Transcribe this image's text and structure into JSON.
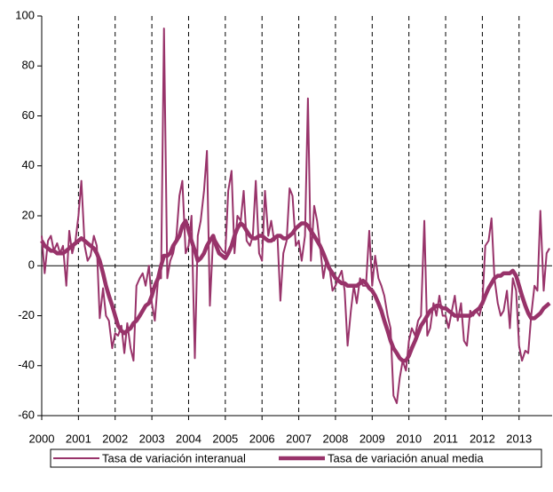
{
  "chart_data": {
    "type": "line",
    "x": [
      2000,
      2000.08,
      2000.17,
      2000.25,
      2000.33,
      2000.42,
      2000.5,
      2000.58,
      2000.67,
      2000.75,
      2000.83,
      2000.92,
      2001,
      2001.08,
      2001.17,
      2001.25,
      2001.33,
      2001.42,
      2001.5,
      2001.58,
      2001.67,
      2001.75,
      2001.83,
      2001.92,
      2002,
      2002.08,
      2002.17,
      2002.25,
      2002.33,
      2002.42,
      2002.5,
      2002.58,
      2002.67,
      2002.75,
      2002.83,
      2002.92,
      2003,
      2003.08,
      2003.17,
      2003.25,
      2003.33,
      2003.42,
      2003.5,
      2003.58,
      2003.67,
      2003.75,
      2003.83,
      2003.92,
      2004,
      2004.08,
      2004.17,
      2004.25,
      2004.33,
      2004.42,
      2004.5,
      2004.58,
      2004.67,
      2004.75,
      2004.83,
      2004.92,
      2005,
      2005.08,
      2005.17,
      2005.25,
      2005.33,
      2005.42,
      2005.5,
      2005.58,
      2005.67,
      2005.75,
      2005.83,
      2005.92,
      2006,
      2006.08,
      2006.17,
      2006.25,
      2006.33,
      2006.42,
      2006.5,
      2006.58,
      2006.67,
      2006.75,
      2006.83,
      2006.92,
      2007,
      2007.08,
      2007.17,
      2007.25,
      2007.33,
      2007.42,
      2007.5,
      2007.58,
      2007.67,
      2007.75,
      2007.83,
      2007.92,
      2008,
      2008.08,
      2008.17,
      2008.25,
      2008.33,
      2008.42,
      2008.5,
      2008.58,
      2008.67,
      2008.75,
      2008.83,
      2008.92,
      2009,
      2009.08,
      2009.17,
      2009.25,
      2009.33,
      2009.42,
      2009.5,
      2009.58,
      2009.67,
      2009.75,
      2009.83,
      2009.92,
      2010,
      2010.08,
      2010.17,
      2010.25,
      2010.33,
      2010.42,
      2010.5,
      2010.58,
      2010.67,
      2010.75,
      2010.83,
      2010.92,
      2011,
      2011.08,
      2011.17,
      2011.25,
      2011.33,
      2011.42,
      2011.5,
      2011.58,
      2011.67,
      2011.75,
      2011.83,
      2011.92,
      2012,
      2012.08,
      2012.17,
      2012.25,
      2012.33,
      2012.42,
      2012.5,
      2012.58,
      2012.67,
      2012.75,
      2012.83,
      2012.92,
      2013,
      2013.08,
      2013.17,
      2013.25,
      2013.33,
      2013.42,
      2013.5,
      2013.58,
      2013.67,
      2013.75,
      2013.83
    ],
    "series": [
      {
        "name": "Tasa de variación interanual",
        "color": "#98336a",
        "width": 2,
        "values": [
          12,
          -3,
          10,
          12,
          6,
          9,
          5,
          8,
          -8,
          14,
          5,
          10,
          20,
          34,
          8,
          2,
          4,
          12,
          8,
          -21,
          -9,
          -20,
          -22,
          -33,
          -27,
          -28,
          -24,
          -35,
          -23,
          -33,
          -38,
          -8,
          -5,
          -3,
          -8,
          0,
          -15,
          -22,
          -5,
          -5,
          95,
          -5,
          2,
          5,
          12,
          28,
          34,
          5,
          8,
          20,
          -37,
          12,
          18,
          30,
          46,
          -16,
          12,
          10,
          8,
          6,
          5,
          30,
          38,
          5,
          20,
          18,
          30,
          10,
          8,
          12,
          34,
          5,
          2,
          30,
          12,
          18,
          10,
          12,
          -14,
          5,
          10,
          31,
          28,
          8,
          10,
          2,
          12,
          67,
          2,
          24,
          18,
          8,
          -5,
          2,
          0,
          -10,
          -8,
          -5,
          -2,
          -10,
          -32,
          -18,
          -8,
          -15,
          -5,
          -8,
          -8,
          14,
          -8,
          4,
          -5,
          -8,
          -12,
          -20,
          -25,
          -52,
          -55,
          -45,
          -38,
          -42,
          -30,
          -25,
          -28,
          -22,
          -20,
          18,
          -28,
          -25,
          -15,
          -20,
          -12,
          -20,
          -20,
          -25,
          -18,
          -12,
          -22,
          -15,
          -30,
          -32,
          -18,
          -20,
          -18,
          -20,
          -15,
          8,
          10,
          19,
          -5,
          -15,
          -20,
          -18,
          -10,
          -25,
          -5,
          -10,
          -32,
          -38,
          -34,
          -35,
          -20,
          -8,
          -10,
          22,
          -10,
          5,
          7
        ]
      },
      {
        "name": "Tasa de variación anual media",
        "color": "#98336a",
        "width": 4.5,
        "values": [
          10,
          8,
          7,
          6,
          6,
          5,
          5,
          5,
          6,
          7,
          8,
          9,
          10,
          11,
          10,
          9,
          8,
          7,
          5,
          2,
          -3,
          -8,
          -12,
          -16,
          -20,
          -24,
          -26,
          -27,
          -26,
          -25,
          -23,
          -22,
          -20,
          -18,
          -16,
          -15,
          -12,
          -8,
          -5,
          0,
          4,
          4,
          5,
          8,
          10,
          12,
          16,
          18,
          14,
          10,
          6,
          2,
          3,
          5,
          8,
          10,
          12,
          8,
          5,
          4,
          3,
          5,
          8,
          12,
          15,
          17,
          16,
          14,
          12,
          11,
          11,
          12,
          12,
          11,
          10,
          10,
          11,
          12,
          12,
          11,
          11,
          12,
          13,
          15,
          16,
          17,
          17,
          16,
          14,
          12,
          10,
          8,
          5,
          2,
          -1,
          -3,
          -5,
          -6,
          -7,
          -7,
          -8,
          -8,
          -8,
          -8,
          -7,
          -6,
          -7,
          -9,
          -10,
          -12,
          -15,
          -18,
          -22,
          -26,
          -30,
          -33,
          -35,
          -37,
          -38,
          -38,
          -36,
          -33,
          -30,
          -27,
          -24,
          -22,
          -20,
          -18,
          -17,
          -16,
          -16,
          -17,
          -17,
          -18,
          -19,
          -20,
          -20,
          -20,
          -20,
          -20,
          -20,
          -19,
          -18,
          -17,
          -15,
          -12,
          -9,
          -7,
          -5,
          -4,
          -4,
          -3,
          -3,
          -3,
          -2,
          -4,
          -8,
          -12,
          -16,
          -19,
          -21,
          -21,
          -20,
          -19,
          -17,
          -16,
          -15
        ]
      }
    ],
    "xlim": [
      2000,
      2013.9
    ],
    "xticks": [
      2000,
      2001,
      2002,
      2003,
      2004,
      2005,
      2006,
      2007,
      2008,
      2009,
      2010,
      2011,
      2012,
      2013
    ],
    "ylim": [
      -60,
      100
    ],
    "yticks": [
      -60,
      -40,
      -20,
      0,
      20,
      40,
      60,
      80,
      100
    ],
    "grid": "x-dashed",
    "legend": "bottom"
  }
}
